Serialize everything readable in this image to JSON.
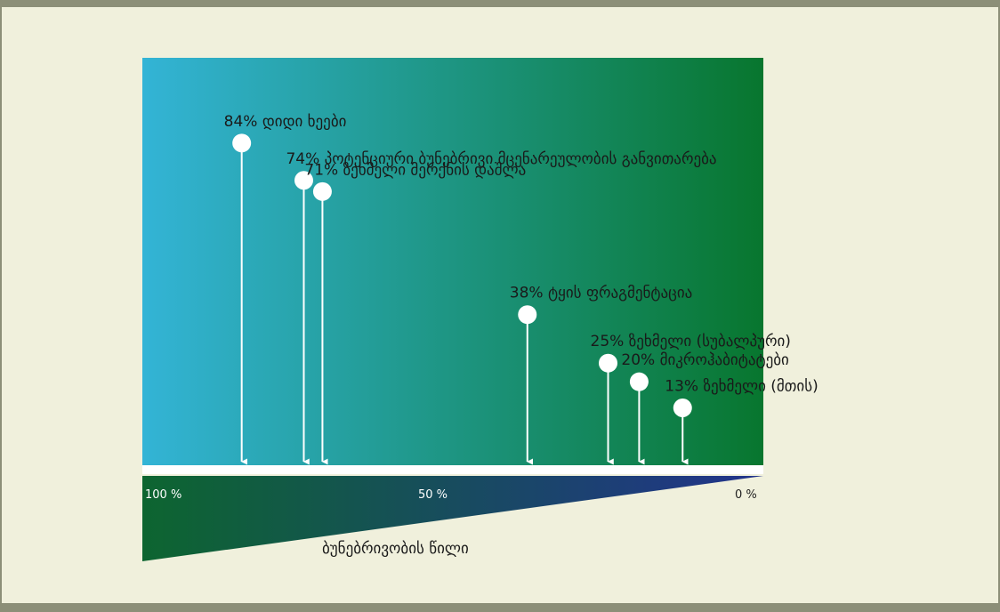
{
  "frame": {
    "border_color": "#8c8f78",
    "background": "#f0f0dc"
  },
  "panel": {
    "gradient_start": "#33b4d6",
    "gradient_end": "#08762e"
  },
  "wedge": {
    "gradient_start": "#0d6530",
    "gradient_end": "#22338c"
  },
  "chart_data": {
    "type": "bar",
    "unit": "%",
    "items": [
      {
        "value": 84,
        "label": "84% დიდი ხეები"
      },
      {
        "value": 74,
        "label": "74% პოტენციური ბუნებრივი მცენარეულობის განვითარება"
      },
      {
        "value": 71,
        "label": "71% ზეხმელი მერქნის დაშლა"
      },
      {
        "value": 38,
        "label": "38% ტყის ფრაგმენტაცია"
      },
      {
        "value": 25,
        "label": "25% ზეხმელი (სუბალპური)"
      },
      {
        "value": 20,
        "label": "20% მიკროჰაბიტატები"
      },
      {
        "value": 13,
        "label": "13% ზეხმელი  (მთის)"
      }
    ],
    "axis": {
      "ticks": [
        {
          "value": 100,
          "label": "100 %"
        },
        {
          "value": 50,
          "label": "50 %"
        },
        {
          "value": 0,
          "label": "0 %"
        }
      ],
      "xlabel": "ბუნებრივობის წილი"
    }
  }
}
